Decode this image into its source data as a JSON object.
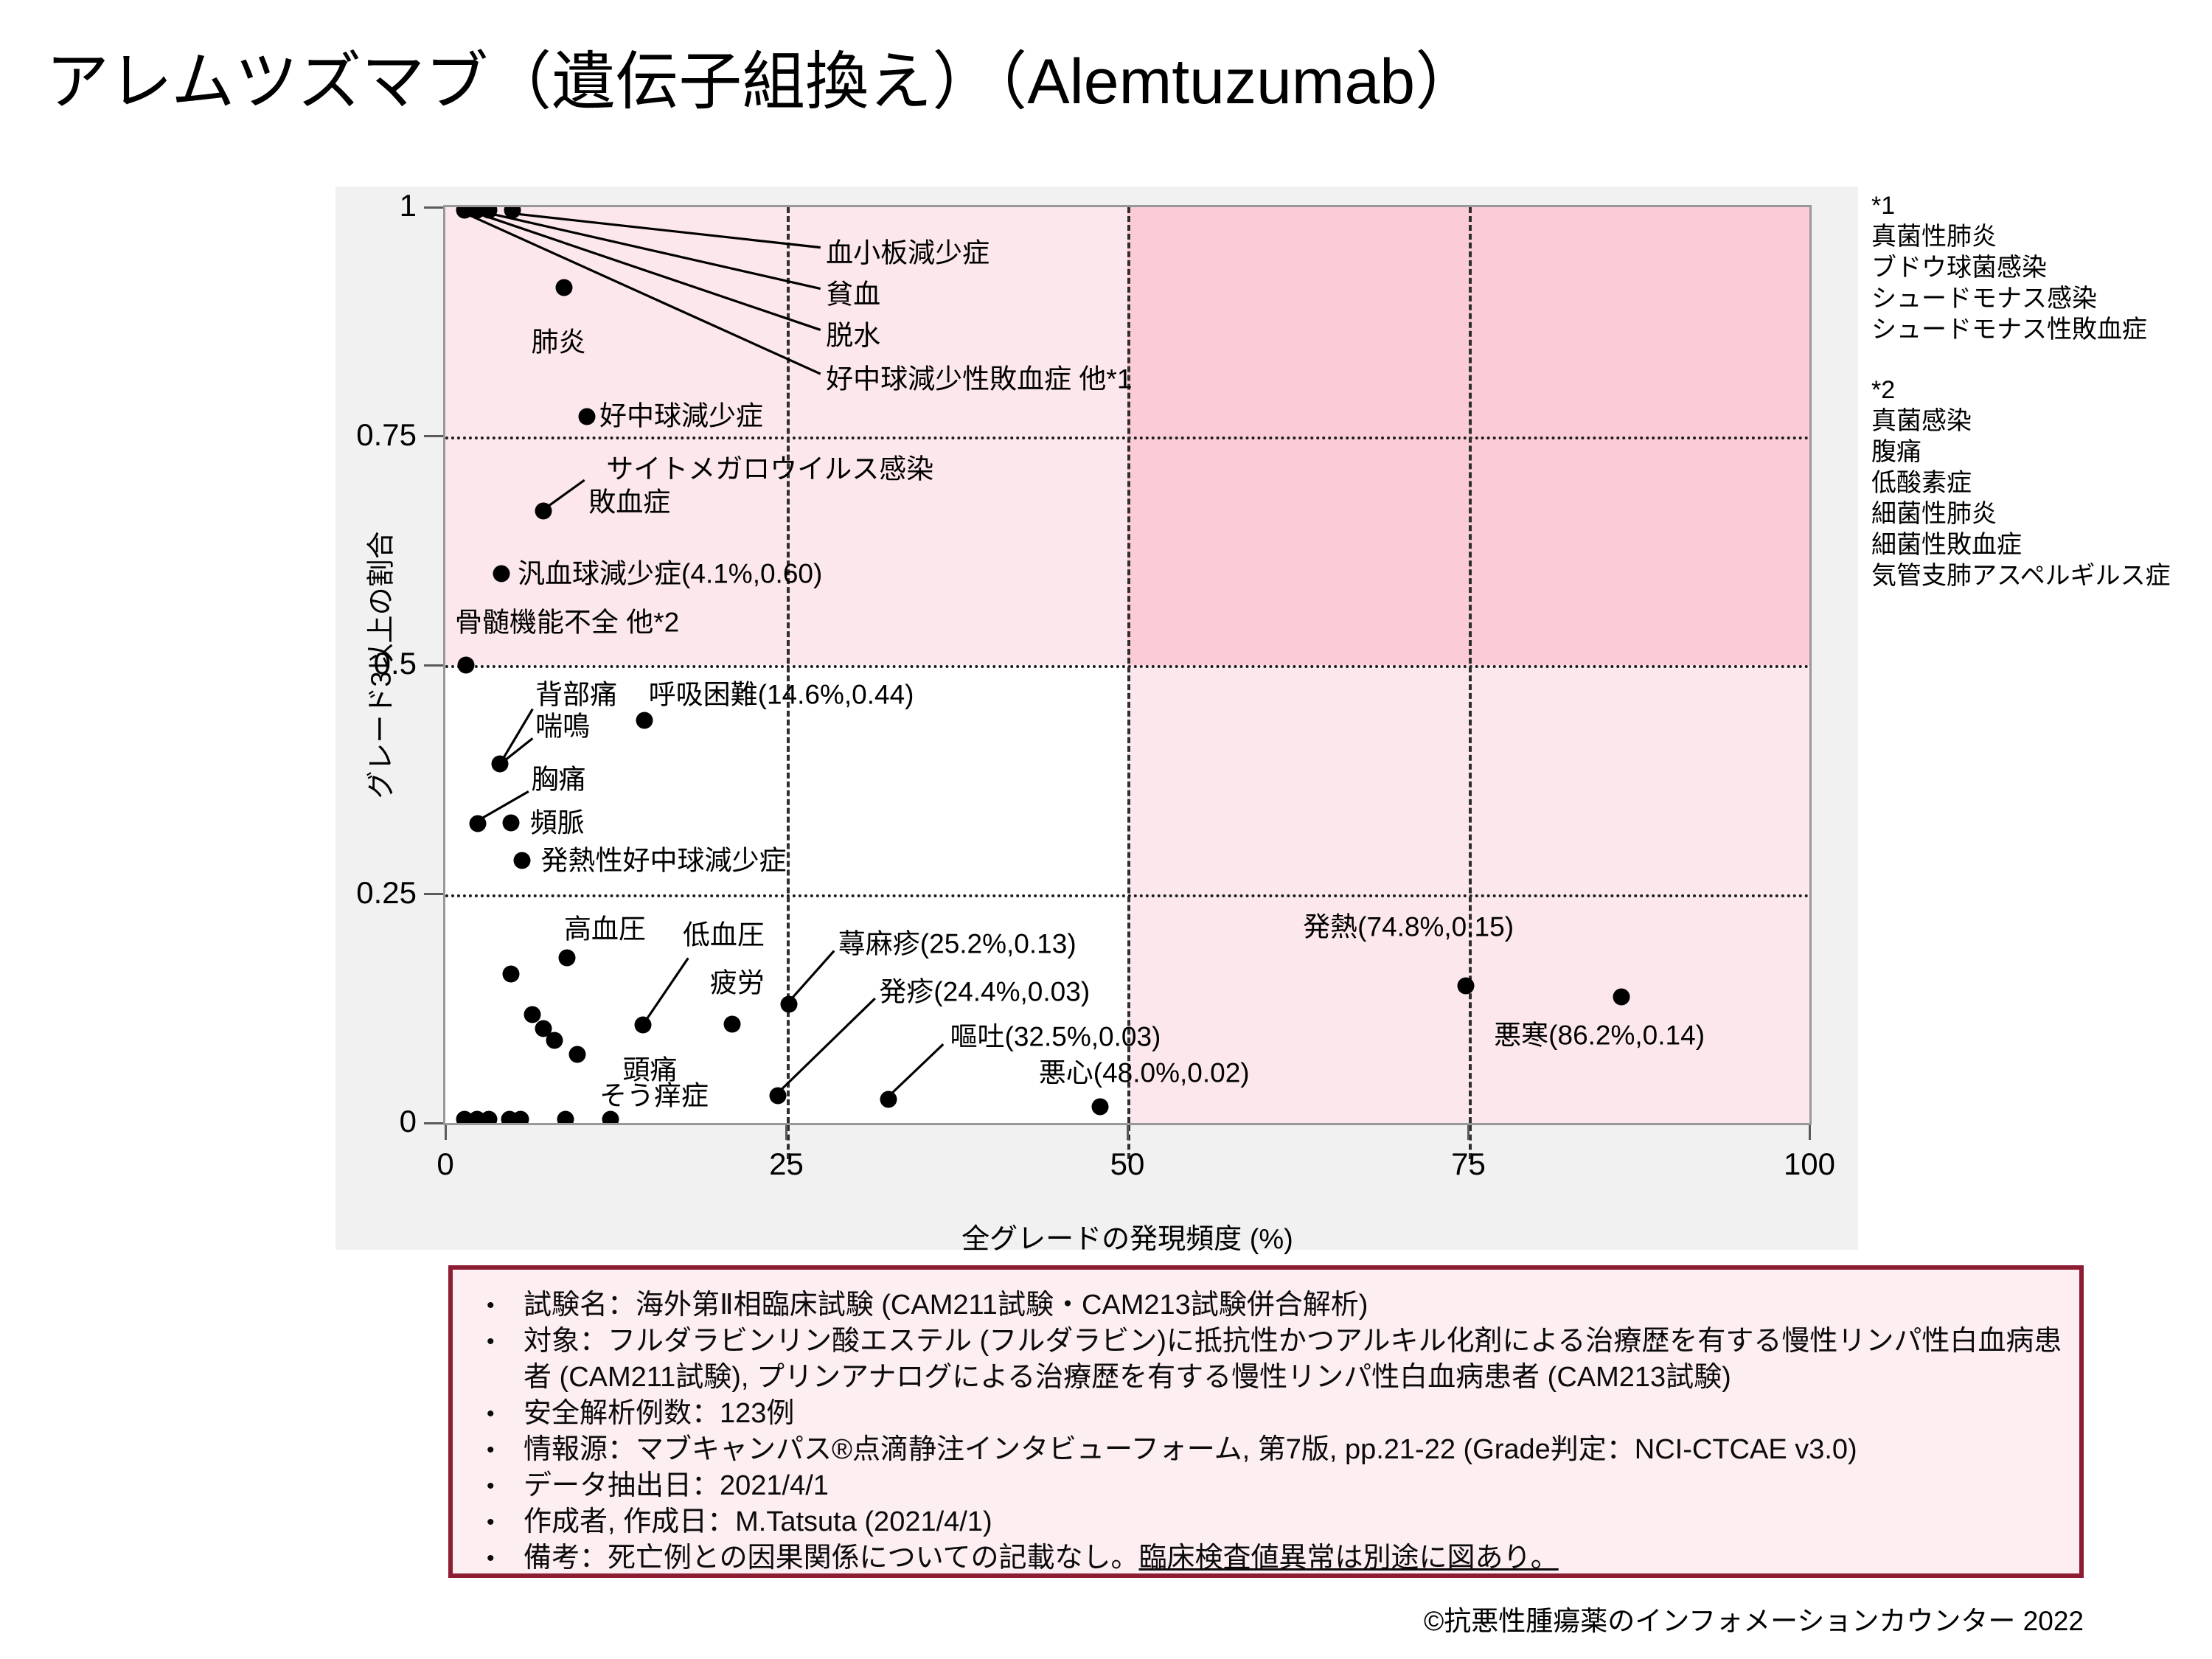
{
  "title": "アレムツズマブ（遺伝子組換え）（Alemtuzumab）",
  "colors": {
    "panel_bg": "#f1f1f1",
    "plot_border": "#989898",
    "light_pink": "#fce8ec",
    "dark_pink": "#fbccd5",
    "box_bg": "#fdeef2",
    "box_border": "#8c1d33",
    "dot": "#000000"
  },
  "chart_data": {
    "type": "scatter",
    "title": "",
    "xlabel": "全グレードの発現頻度 (%)",
    "ylabel": "グレード3以上の割合",
    "xlim": [
      0,
      100
    ],
    "ylim": [
      0,
      1
    ],
    "x_ticks": [
      "0",
      "25",
      "50",
      "75",
      "100"
    ],
    "y_ticks": [
      "1",
      "0.75",
      "0.5",
      "0.25",
      "0"
    ],
    "x_gridlines": [
      25,
      50,
      75
    ],
    "y_gridlines": [
      0.25,
      0.5,
      0.75
    ],
    "regions": [
      {
        "name": "upper-left",
        "x0": 0,
        "x1": 50,
        "y0": 0.5,
        "y1": 1,
        "color": "#fce8ec"
      },
      {
        "name": "upper-right",
        "x0": 50,
        "x1": 100,
        "y0": 0.5,
        "y1": 1,
        "color": "#fbccd5"
      },
      {
        "name": "lower-right",
        "x0": 50,
        "x1": 100,
        "y0": 0,
        "y1": 0.5,
        "color": "#fce8ec"
      }
    ],
    "points": [
      {
        "x": 1.4,
        "y": 0.997
      },
      {
        "x": 2.3,
        "y": 0.997
      },
      {
        "x": 3.2,
        "y": 0.997
      },
      {
        "x": 4.9,
        "y": 0.997
      },
      {
        "x": 8.7,
        "y": 0.912
      },
      {
        "x": 10.4,
        "y": 0.771
      },
      {
        "x": 7.2,
        "y": 0.668
      },
      {
        "x": 4.1,
        "y": 0.6
      },
      {
        "x": 1.5,
        "y": 0.5
      },
      {
        "x": 4.0,
        "y": 0.392
      },
      {
        "x": 2.4,
        "y": 0.327
      },
      {
        "x": 4.8,
        "y": 0.328
      },
      {
        "x": 5.6,
        "y": 0.287
      },
      {
        "x": 14.6,
        "y": 0.44
      },
      {
        "x": 8.9,
        "y": 0.18
      },
      {
        "x": 4.8,
        "y": 0.163
      },
      {
        "x": 6.4,
        "y": 0.118
      },
      {
        "x": 7.2,
        "y": 0.103
      },
      {
        "x": 8.0,
        "y": 0.09
      },
      {
        "x": 9.7,
        "y": 0.075
      },
      {
        "x": 14.5,
        "y": 0.107
      },
      {
        "x": 21.0,
        "y": 0.108
      },
      {
        "x": 25.2,
        "y": 0.13
      },
      {
        "x": 24.4,
        "y": 0.03
      },
      {
        "x": 32.5,
        "y": 0.026
      },
      {
        "x": 48.0,
        "y": 0.018
      },
      {
        "x": 74.8,
        "y": 0.15
      },
      {
        "x": 86.2,
        "y": 0.138
      },
      {
        "x": 1.4,
        "y": 0.004
      },
      {
        "x": 2.3,
        "y": 0.004
      },
      {
        "x": 3.2,
        "y": 0.004
      },
      {
        "x": 4.7,
        "y": 0.004
      },
      {
        "x": 5.5,
        "y": 0.004
      },
      {
        "x": 8.8,
        "y": 0.004
      },
      {
        "x": 12.1,
        "y": 0.004
      }
    ],
    "labels": [
      {
        "t": "血小板減少症",
        "x": 27.9,
        "y": 0.95,
        "ha": "left"
      },
      {
        "t": "貧血",
        "x": 27.9,
        "y": 0.905,
        "ha": "left"
      },
      {
        "t": "脱水",
        "x": 27.9,
        "y": 0.86,
        "ha": "left"
      },
      {
        "t": "好中球減少性敗血症 他*1",
        "x": 27.9,
        "y": 0.812,
        "ha": "left"
      },
      {
        "t": "肺炎",
        "x": 8.3,
        "y": 0.853,
        "ha": "center"
      },
      {
        "t": "好中球減少症",
        "x": 11.3,
        "y": 0.772,
        "ha": "left"
      },
      {
        "t": "サイトメガロウイルス感染",
        "x": 11.8,
        "y": 0.714,
        "ha": "left"
      },
      {
        "t": "敗血症",
        "x": 10.5,
        "y": 0.678,
        "ha": "left"
      },
      {
        "t": "汎血球減少症(4.1%,0.60)",
        "x": 5.3,
        "y": 0.6,
        "ha": "left"
      },
      {
        "t": "骨髄機能不全 他*2",
        "x": 0.7,
        "y": 0.547,
        "ha": "left"
      },
      {
        "t": "背部痛",
        "x": 6.6,
        "y": 0.468,
        "ha": "left"
      },
      {
        "t": "喘鳴",
        "x": 6.6,
        "y": 0.433,
        "ha": "left"
      },
      {
        "t": "呼吸困難(14.6%,0.44)",
        "x": 14.9,
        "y": 0.468,
        "ha": "left"
      },
      {
        "t": "胸痛",
        "x": 6.3,
        "y": 0.375,
        "ha": "left"
      },
      {
        "t": "頻脈",
        "x": 6.2,
        "y": 0.328,
        "ha": "left"
      },
      {
        "t": "発熱性好中球減少症",
        "x": 7.0,
        "y": 0.287,
        "ha": "left"
      },
      {
        "t": "高血圧",
        "x": 11.7,
        "y": 0.212,
        "ha": "center"
      },
      {
        "t": "低血圧",
        "x": 20.4,
        "y": 0.205,
        "ha": "center"
      },
      {
        "t": "疲労",
        "x": 21.4,
        "y": 0.153,
        "ha": "center"
      },
      {
        "t": "蕁麻疹(25.2%,0.13)",
        "x": 28.8,
        "y": 0.196,
        "ha": "left"
      },
      {
        "t": "発疹(24.4%,0.03)",
        "x": 31.8,
        "y": 0.143,
        "ha": "left"
      },
      {
        "t": "嘔吐(32.5%,0.03)",
        "x": 37.0,
        "y": 0.094,
        "ha": "left"
      },
      {
        "t": "悪心(48.0%,0.02)",
        "x": 43.5,
        "y": 0.055,
        "ha": "left"
      },
      {
        "t": "発熱(74.8%,0.15)",
        "x": 70.6,
        "y": 0.214,
        "ha": "center"
      },
      {
        "t": "悪寒(86.2%,0.14)",
        "x": 84.6,
        "y": 0.096,
        "ha": "center"
      },
      {
        "t": "頭痛",
        "x": 15.0,
        "y": 0.058,
        "ha": "center"
      },
      {
        "t": "そう痒症",
        "x": 15.3,
        "y": 0.03,
        "ha": "center"
      }
    ],
    "leaders": [
      {
        "x1": 5.0,
        "y1": 0.993,
        "x2": 27.5,
        "y2": 0.956
      },
      {
        "x1": 3.3,
        "y1": 0.993,
        "x2": 27.5,
        "y2": 0.911
      },
      {
        "x1": 2.4,
        "y1": 0.993,
        "x2": 27.5,
        "y2": 0.866
      },
      {
        "x1": 1.5,
        "y1": 0.993,
        "x2": 27.5,
        "y2": 0.818
      },
      {
        "x1": 7.4,
        "y1": 0.672,
        "x2": 10.2,
        "y2": 0.702
      },
      {
        "x1": 4.2,
        "y1": 0.397,
        "x2": 6.4,
        "y2": 0.452
      },
      {
        "x1": 4.2,
        "y1": 0.394,
        "x2": 6.4,
        "y2": 0.42
      },
      {
        "x1": 2.6,
        "y1": 0.332,
        "x2": 6.1,
        "y2": 0.362
      },
      {
        "x1": 14.7,
        "y1": 0.112,
        "x2": 17.8,
        "y2": 0.18
      },
      {
        "x1": 25.4,
        "y1": 0.136,
        "x2": 28.5,
        "y2": 0.188
      },
      {
        "x1": 24.6,
        "y1": 0.036,
        "x2": 31.5,
        "y2": 0.136
      },
      {
        "x1": 32.7,
        "y1": 0.032,
        "x2": 36.5,
        "y2": 0.086
      }
    ]
  },
  "annotations": {
    "note1_title": "*1",
    "note1_items": [
      "真菌性肺炎",
      "ブドウ球菌感染",
      "シュードモナス感染",
      "シュードモナス性敗血症"
    ],
    "note2_title": "*2",
    "note2_items": [
      "真菌感染",
      "腹痛",
      "低酸素症",
      "細菌性肺炎",
      "細菌性敗血症",
      "気管支肺アスペルギルス症"
    ]
  },
  "info_box": {
    "bullets": [
      {
        "text": "試験名：海外第Ⅱ相臨床試験 (CAM211試験・CAM213試験併合解析)"
      },
      {
        "text": "対象：フルダラビンリン酸エステル (フルダラビン)に抵抗性かつアルキル化剤による治療歴を有する慢性リンパ性白血病患者 (CAM211試験), プリンアナログによる治療歴を有する慢性リンパ性白血病患者 (CAM213試験)"
      },
      {
        "text": "安全解析例数：123例"
      },
      {
        "text": "情報源：マブキャンパス®点滴静注インタビューフォーム, 第7版, pp.21-22 (Grade判定：NCI-CTCAE v3.0)"
      },
      {
        "text": "データ抽出日：2021/4/1"
      },
      {
        "text": "作成者, 作成日：M.Tatsuta (2021/4/1)"
      },
      {
        "text": "備考：死亡例との因果関係についての記載なし。",
        "underline": "臨床検査値異常は別途に図あり。"
      }
    ]
  },
  "footer": "©抗悪性腫瘍薬のインフォメーションカウンター  2022"
}
